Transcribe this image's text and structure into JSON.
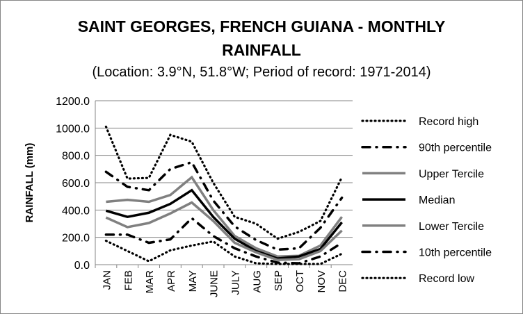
{
  "chart_data": {
    "type": "line",
    "title_line1": "SAINT GEORGES, FRENCH GUIANA - MONTHLY",
    "title_line2": "RAINFALL",
    "subtitle": "(Location: 3.9°N, 51.8°W; Period of record: 1971-2014)",
    "xlabel": "",
    "ylabel": "RAINFALL (mm)",
    "ylim": [
      0,
      1200
    ],
    "yticks": [
      "0.0",
      "200.0",
      "400.0",
      "600.0",
      "800.0",
      "1000.0",
      "1200.0"
    ],
    "grid": true,
    "legend_position": "right",
    "categories": [
      "JAN",
      "FEB",
      "MAR",
      "APR",
      "MAY",
      "JUNE",
      "JULY",
      "AUG",
      "SEP",
      "OCT",
      "NOV",
      "DEC"
    ],
    "series": [
      {
        "name": "Record high",
        "color": "#000000",
        "style": "dot",
        "values": [
          1010,
          630,
          635,
          950,
          900,
          600,
          350,
          300,
          190,
          240,
          320,
          640
        ]
      },
      {
        "name": "90th percentile",
        "color": "#000000",
        "style": "dashdot",
        "values": [
          680,
          570,
          545,
          700,
          750,
          470,
          280,
          180,
          110,
          120,
          270,
          490
        ]
      },
      {
        "name": "Upper Tercile",
        "color": "#808080",
        "style": "solid",
        "values": [
          460,
          475,
          460,
          510,
          640,
          400,
          210,
          120,
          60,
          65,
          140,
          350
        ]
      },
      {
        "name": "Median",
        "color": "#000000",
        "style": "solid",
        "values": [
          395,
          350,
          380,
          445,
          545,
          350,
          190,
          100,
          45,
          60,
          115,
          310
        ]
      },
      {
        "name": "Lower Tercile",
        "color": "#808080",
        "style": "solid",
        "values": [
          345,
          275,
          305,
          375,
          455,
          320,
          160,
          90,
          35,
          40,
          100,
          250
        ]
      },
      {
        "name": "10th percentile",
        "color": "#000000",
        "style": "dashdot",
        "values": [
          220,
          220,
          160,
          185,
          340,
          210,
          120,
          60,
          15,
          10,
          60,
          160
        ]
      },
      {
        "name": "Record low",
        "color": "#000000",
        "style": "dot",
        "values": [
          175,
          100,
          25,
          105,
          140,
          170,
          60,
          10,
          5,
          5,
          5,
          80
        ]
      }
    ]
  }
}
